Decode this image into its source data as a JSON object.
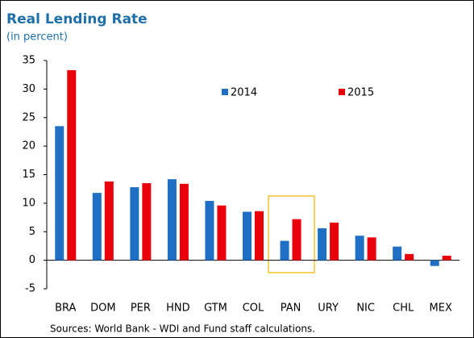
{
  "chart_data": {
    "type": "bar",
    "title": "Real Lending Rate",
    "subtitle": "(in percent)",
    "categories": [
      "BRA",
      "DOM",
      "PER",
      "HND",
      "GTM",
      "COL",
      "PAN",
      "URY",
      "NIC",
      "CHL",
      "MEX"
    ],
    "series": [
      {
        "name": "2014",
        "color": "#1f6fc5",
        "values": [
          23.5,
          11.8,
          12.8,
          14.2,
          10.4,
          8.5,
          3.4,
          5.6,
          4.3,
          2.4,
          -1.0
        ]
      },
      {
        "name": "2015",
        "color": "#e8000b",
        "values": [
          33.3,
          13.8,
          13.5,
          13.4,
          9.6,
          8.6,
          7.2,
          6.6,
          4.0,
          1.1,
          0.8
        ]
      }
    ],
    "ylim": [
      -5,
      35
    ],
    "yticks": [
      -5,
      0,
      5,
      10,
      15,
      20,
      25,
      30,
      35
    ],
    "grid": false,
    "note": "Sources: World Bank - WDI and Fund staff calculations."
  }
}
